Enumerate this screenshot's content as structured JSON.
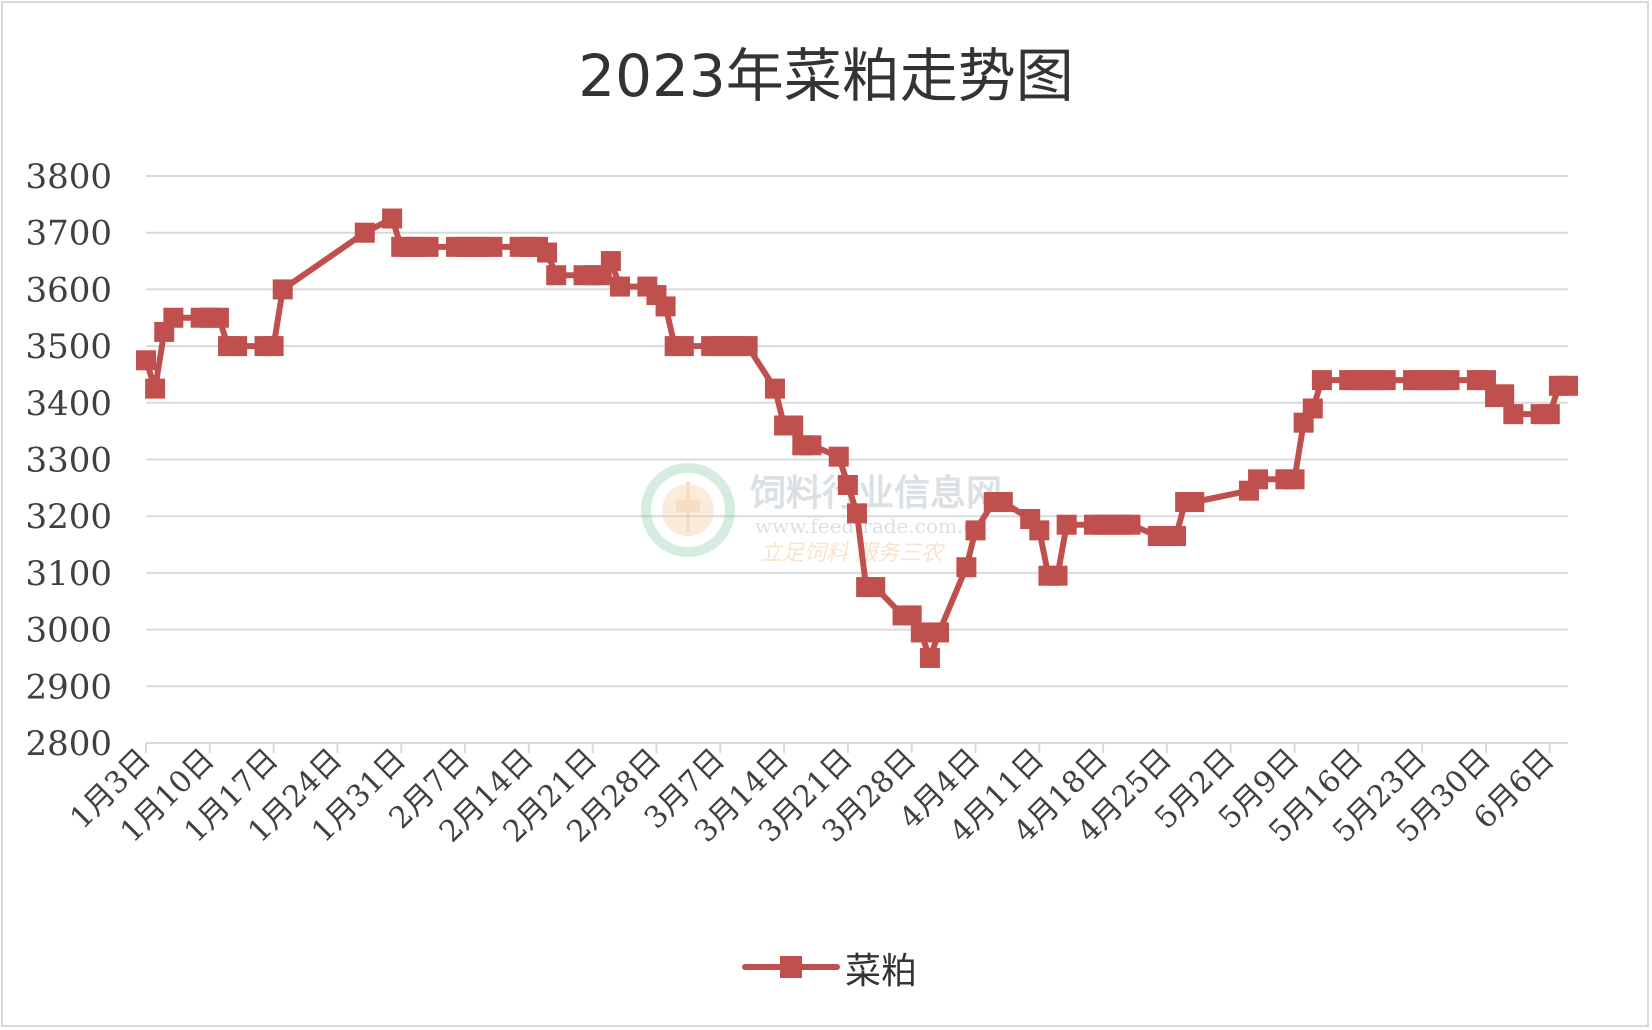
{
  "chart_data": {
    "type": "line",
    "title": "2023年菜粕走势图",
    "xlabel": "",
    "ylabel": "",
    "ylim": [
      2800,
      3800
    ],
    "yticks": [
      2800,
      2900,
      3000,
      3100,
      3200,
      3300,
      3400,
      3500,
      3600,
      3700,
      3800
    ],
    "xlim": [
      "2023-01-03",
      "2023-06-08"
    ],
    "xtick_labels": [
      "1月3日",
      "1月10日",
      "1月17日",
      "1月24日",
      "1月31日",
      "2月7日",
      "2月14日",
      "2月21日",
      "2月28日",
      "3月7日",
      "3月14日",
      "3月21日",
      "3月28日",
      "4月4日",
      "4月11日",
      "4月18日",
      "4月25日",
      "5月2日",
      "5月9日",
      "5月16日",
      "5月23日",
      "5月30日",
      "6月6日"
    ],
    "xtick_dates": [
      "2023-01-03",
      "2023-01-10",
      "2023-01-17",
      "2023-01-24",
      "2023-01-31",
      "2023-02-07",
      "2023-02-14",
      "2023-02-21",
      "2023-02-28",
      "2023-03-07",
      "2023-03-14",
      "2023-03-21",
      "2023-03-28",
      "2023-04-04",
      "2023-04-11",
      "2023-04-18",
      "2023-04-25",
      "2023-05-02",
      "2023-05-09",
      "2023-05-16",
      "2023-05-23",
      "2023-05-30",
      "2023-06-06"
    ],
    "grid": true,
    "legend_position": "bottom",
    "series": [
      {
        "name": "菜粕",
        "color": "#c0504d",
        "marker": "square",
        "x": [
          "2023-01-03",
          "2023-01-04",
          "2023-01-05",
          "2023-01-06",
          "2023-01-09",
          "2023-01-10",
          "2023-01-11",
          "2023-01-12",
          "2023-01-13",
          "2023-01-16",
          "2023-01-17",
          "2023-01-18",
          "2023-01-27",
          "2023-01-30",
          "2023-01-31",
          "2023-02-01",
          "2023-02-02",
          "2023-02-03",
          "2023-02-06",
          "2023-02-07",
          "2023-02-08",
          "2023-02-09",
          "2023-02-10",
          "2023-02-13",
          "2023-02-14",
          "2023-02-15",
          "2023-02-16",
          "2023-02-17",
          "2023-02-20",
          "2023-02-21",
          "2023-02-22",
          "2023-02-23",
          "2023-02-24",
          "2023-02-27",
          "2023-02-28",
          "2023-03-01",
          "2023-03-02",
          "2023-03-03",
          "2023-03-06",
          "2023-03-07",
          "2023-03-08",
          "2023-03-09",
          "2023-03-10",
          "2023-03-13",
          "2023-03-14",
          "2023-03-15",
          "2023-03-16",
          "2023-03-17",
          "2023-03-20",
          "2023-03-21",
          "2023-03-22",
          "2023-03-23",
          "2023-03-24",
          "2023-03-27",
          "2023-03-28",
          "2023-03-29",
          "2023-03-30",
          "2023-03-31",
          "2023-04-03",
          "2023-04-04",
          "2023-04-06",
          "2023-04-07",
          "2023-04-10",
          "2023-04-11",
          "2023-04-12",
          "2023-04-13",
          "2023-04-14",
          "2023-04-17",
          "2023-04-18",
          "2023-04-19",
          "2023-04-20",
          "2023-04-21",
          "2023-04-24",
          "2023-04-25",
          "2023-04-26",
          "2023-04-27",
          "2023-04-28",
          "2023-05-04",
          "2023-05-05",
          "2023-05-08",
          "2023-05-09",
          "2023-05-10",
          "2023-05-11",
          "2023-05-12",
          "2023-05-15",
          "2023-05-16",
          "2023-05-17",
          "2023-05-18",
          "2023-05-19",
          "2023-05-22",
          "2023-05-23",
          "2023-05-24",
          "2023-05-25",
          "2023-05-26",
          "2023-05-29",
          "2023-05-30",
          "2023-05-31",
          "2023-06-01",
          "2023-06-02",
          "2023-06-05",
          "2023-06-06",
          "2023-06-07",
          "2023-06-08"
        ],
        "values": [
          3475,
          3425,
          3525,
          3550,
          3550,
          3550,
          3550,
          3500,
          3500,
          3500,
          3500,
          3600,
          3700,
          3725,
          3675,
          3675,
          3675,
          3675,
          3675,
          3675,
          3675,
          3675,
          3675,
          3675,
          3675,
          3675,
          3665,
          3625,
          3625,
          3625,
          3625,
          3650,
          3605,
          3605,
          3590,
          3570,
          3500,
          3500,
          3500,
          3500,
          3500,
          3500,
          3500,
          3425,
          3360,
          3360,
          3325,
          3325,
          3305,
          3255,
          3205,
          3075,
          3075,
          3025,
          3025,
          2995,
          2950,
          2995,
          3110,
          3175,
          3225,
          3225,
          3195,
          3175,
          3095,
          3095,
          3185,
          3185,
          3185,
          3185,
          3185,
          3185,
          3165,
          3165,
          3165,
          3225,
          3225,
          3245,
          3265,
          3265,
          3265,
          3365,
          3390,
          3440,
          3440,
          3440,
          3440,
          3440,
          3440,
          3440,
          3440,
          3440,
          3440,
          3440,
          3440,
          3440,
          3410,
          3415,
          3380,
          3380,
          3380,
          3430,
          3430
        ]
      }
    ],
    "watermark": {
      "lines": [
        "饲料行业信息网",
        "www.feedtrade.com.cn",
        "立足饲料 服务三农"
      ]
    }
  }
}
